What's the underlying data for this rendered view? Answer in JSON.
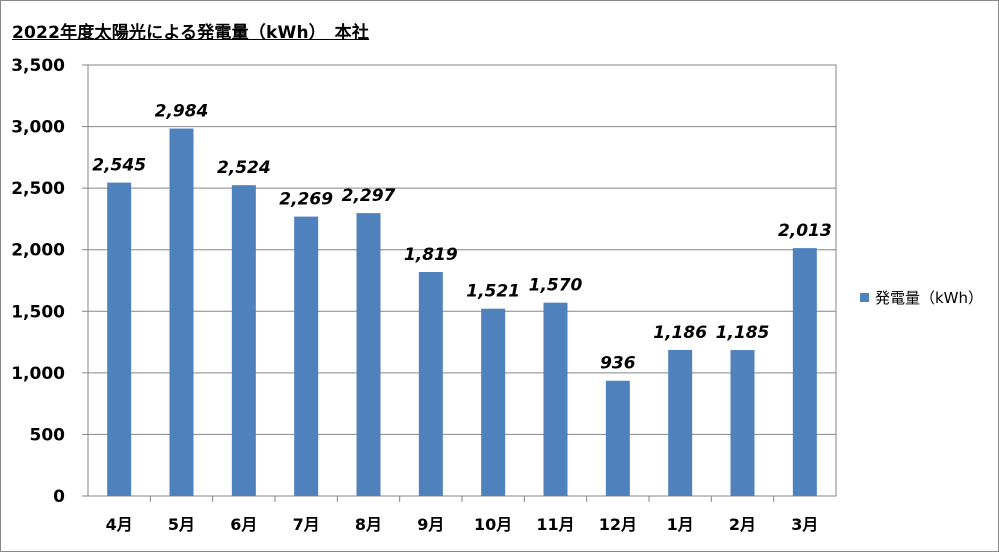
{
  "title": "2022年度太陽光による発電量（kWh）　本社",
  "legend": {
    "label": "発電量（kWh）",
    "color": "#4F81BD"
  },
  "chart_data": {
    "type": "bar",
    "title": "2022年度太陽光による発電量（kWh）　本社",
    "xlabel": "",
    "ylabel": "",
    "categories": [
      "4月",
      "5月",
      "6月",
      "7月",
      "8月",
      "9月",
      "10月",
      "11月",
      "12月",
      "1月",
      "2月",
      "3月"
    ],
    "series": [
      {
        "name": "発電量（kWh）",
        "values": [
          2545,
          2984,
          2524,
          2269,
          2297,
          1819,
          1521,
          1570,
          936,
          1186,
          1185,
          2013
        ],
        "color": "#4F81BD"
      }
    ],
    "data_labels": [
      "2,545",
      "2,984",
      "2,524",
      "2,269",
      "2,297",
      "1,819",
      "1,521",
      "1,570",
      "936",
      "1,186",
      "1,185",
      "2,013"
    ],
    "ylim": [
      0,
      3500
    ],
    "yticks": [
      0,
      500,
      1000,
      1500,
      2000,
      2500,
      3000,
      3500
    ],
    "ytick_labels": [
      "0",
      "500",
      "1,000",
      "1,500",
      "2,000",
      "2,500",
      "3,000",
      "3,500"
    ],
    "grid": true,
    "legend_position": "right"
  }
}
